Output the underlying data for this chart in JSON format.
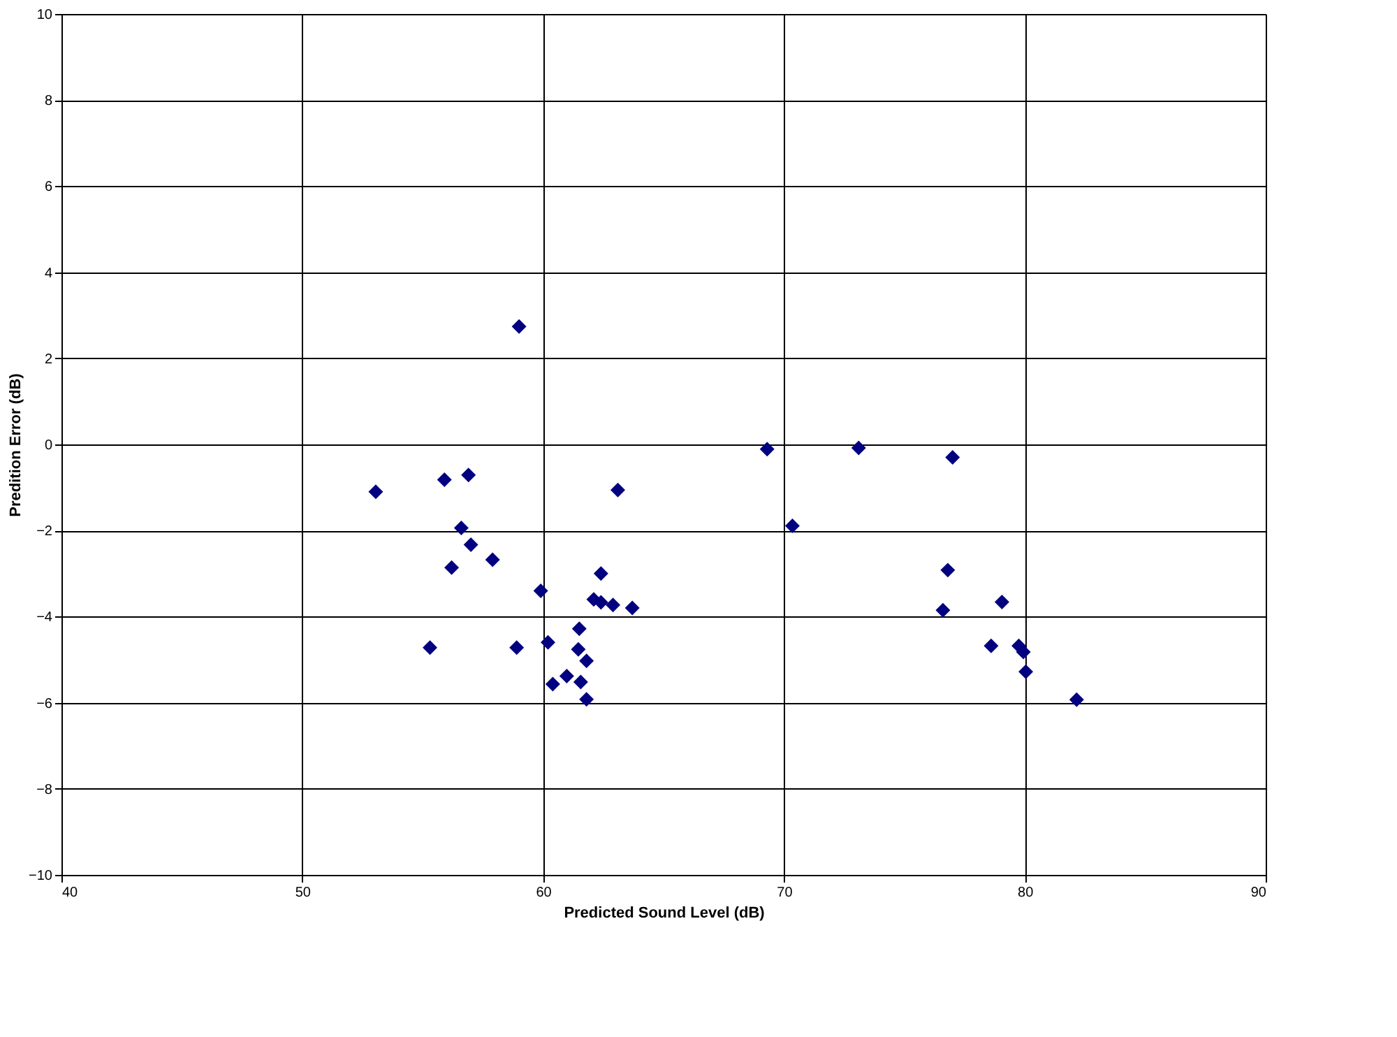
{
  "chart_data": {
    "type": "scatter",
    "xlabel": "Predicted Sound Level (dB)",
    "ylabel": "Predition Error (dB)",
    "x": [
      53.05,
      55.9,
      56.9,
      56.6,
      57.0,
      56.2,
      57.9,
      59.9,
      55.3,
      58.9,
      59.0,
      60.2,
      60.4,
      60.98,
      61.56,
      61.8,
      61.46,
      61.8,
      61.5,
      62.4,
      62.1,
      62.4,
      62.9,
      63.7,
      63.1,
      69.3,
      73.1,
      77.0,
      70.35,
      76.8,
      79.05,
      76.6,
      78.6,
      79.75,
      79.94,
      80.04,
      82.15
    ],
    "series": [
      {
        "color": "#000080",
        "values": [
          -1.1,
          -0.82,
          -0.71,
          -1.94,
          -2.33,
          -2.86,
          -2.68,
          -3.4,
          -4.72,
          -4.72,
          2.74,
          -4.6,
          -5.57,
          -5.38,
          -5.52,
          -5.92,
          -4.76,
          -5.03,
          -4.28,
          -3.0,
          -3.6,
          -3.67,
          -3.73,
          -3.8,
          -1.06,
          -0.11,
          -0.08,
          -0.3,
          -1.89,
          -2.92,
          -3.66,
          -3.85,
          -4.68,
          -4.68,
          -4.82,
          -5.28,
          -5.93
        ]
      }
    ],
    "xlim": [
      40,
      90
    ],
    "xticks": [
      40,
      50,
      60,
      70,
      80,
      90
    ],
    "ylim": [
      -10,
      10
    ],
    "yticks": [
      -10,
      -8,
      -6,
      -4,
      -2,
      0,
      2,
      4,
      6,
      8,
      10
    ],
    "grid": true,
    "marker": "diamond"
  }
}
